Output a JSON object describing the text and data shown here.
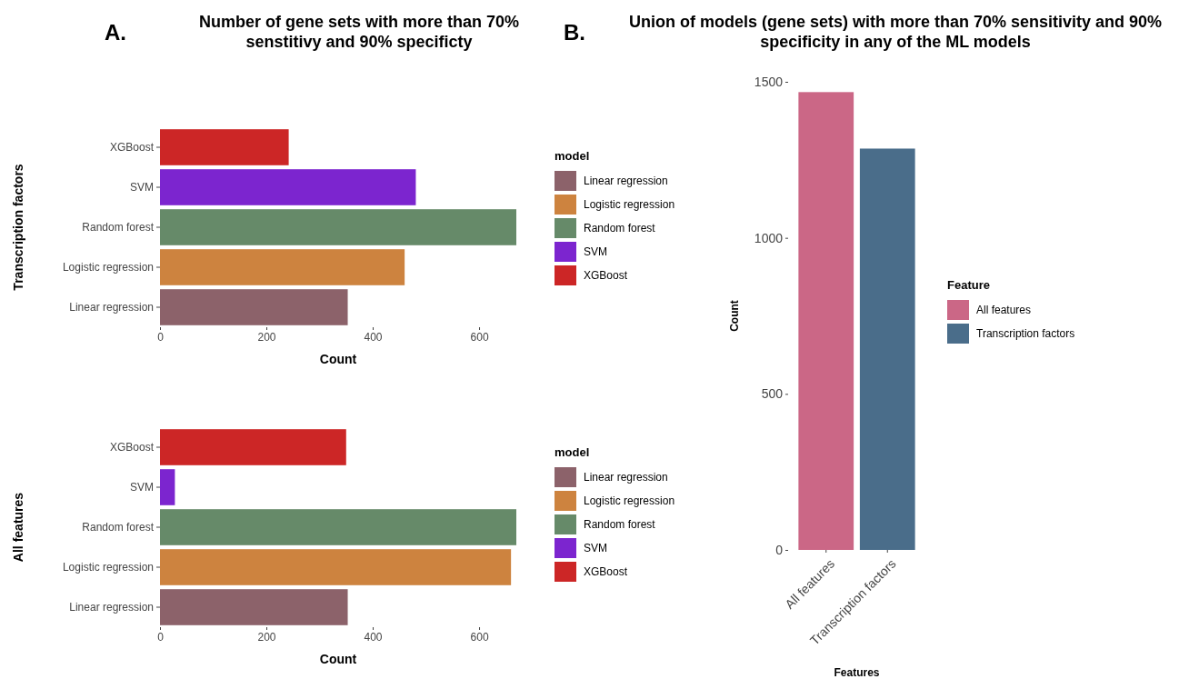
{
  "chart_data": [
    {
      "type": "bar",
      "orientation": "horizontal",
      "title": "Number of gene sets with more than 70% senstitivy and 90% specificty",
      "annotations": [
        "A."
      ],
      "ylabel": "Transcription factors",
      "xlabel": "Count",
      "legend_title": "model",
      "legend": "right",
      "categories": [
        "XGBoost",
        "SVM",
        "Random forest",
        "Logistic regression",
        "Linear regression"
      ],
      "series": [
        {
          "name": "Linear regression",
          "color": "#8c626a",
          "values": [
            null,
            null,
            null,
            null,
            353
          ]
        },
        {
          "name": "Logistic regression",
          "color": "#cd833f",
          "values": [
            null,
            null,
            null,
            460,
            null
          ]
        },
        {
          "name": "Random forest",
          "color": "#668a69",
          "values": [
            null,
            null,
            670,
            null,
            null
          ]
        },
        {
          "name": "SVM",
          "color": "#7c25cf",
          "values": [
            null,
            481,
            null,
            null,
            null
          ]
        },
        {
          "name": "XGBoost",
          "color": "#cc2626",
          "values": [
            242,
            null,
            null,
            null,
            null
          ]
        }
      ],
      "xlim": [
        0,
        670
      ],
      "xticks": [
        0,
        200,
        400,
        600
      ]
    },
    {
      "type": "bar",
      "orientation": "horizontal",
      "ylabel": "All features",
      "xlabel": "Count",
      "legend_title": "model",
      "legend": "right",
      "categories": [
        "XGBoost",
        "SVM",
        "Random forest",
        "Logistic regression",
        "Linear regression"
      ],
      "series": [
        {
          "name": "Linear regression",
          "color": "#8c626a",
          "values": [
            null,
            null,
            null,
            null,
            353
          ]
        },
        {
          "name": "Logistic regression",
          "color": "#cd833f",
          "values": [
            null,
            null,
            null,
            660,
            null
          ]
        },
        {
          "name": "Random forest",
          "color": "#668a69",
          "values": [
            null,
            null,
            670,
            null,
            null
          ]
        },
        {
          "name": "SVM",
          "color": "#7c25cf",
          "values": [
            null,
            28,
            null,
            null,
            null
          ]
        },
        {
          "name": "XGBoost",
          "color": "#cc2626",
          "values": [
            350,
            null,
            null,
            null,
            null
          ]
        }
      ],
      "xlim": [
        0,
        670
      ],
      "xticks": [
        0,
        200,
        400,
        600
      ]
    },
    {
      "type": "bar",
      "title": "Union of models (gene sets) with more than 70% sensitivity and 90% specificity in any of the ML models",
      "annotations": [
        "B."
      ],
      "xlabel": "Features",
      "ylabel": "Count",
      "legend_title": "Feature",
      "legend": "right",
      "categories": [
        "All features",
        "Transcription factors"
      ],
      "series": [
        {
          "name": "All features",
          "color": "#cb6786",
          "values": [
            1467,
            null
          ]
        },
        {
          "name": "Transcription factors",
          "color": "#4a6d8a",
          "values": [
            null,
            1286
          ]
        }
      ],
      "ylim": [
        0,
        1500
      ],
      "yticks": [
        0,
        500,
        1000,
        1500
      ]
    }
  ]
}
